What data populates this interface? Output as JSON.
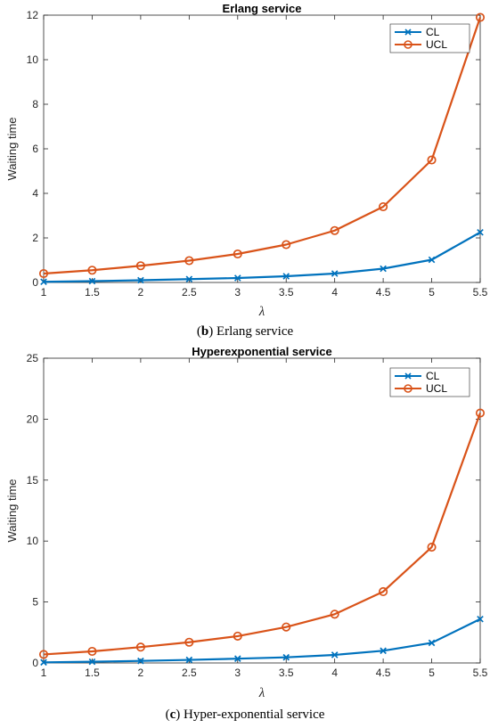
{
  "chart_data": [
    {
      "type": "line",
      "title": "Erlang service",
      "xlabel": "λ",
      "ylabel": "Waiting time",
      "xlim": [
        1,
        5.5
      ],
      "ylim": [
        0,
        12
      ],
      "xticks": [
        "1",
        "1.5",
        "2",
        "2.5",
        "3",
        "3.5",
        "4",
        "4.5",
        "5",
        "5.5"
      ],
      "yticks": [
        "0",
        "2",
        "4",
        "6",
        "8",
        "10",
        "12"
      ],
      "legend_position": "top-right",
      "x": [
        1,
        1.5,
        2,
        2.5,
        3,
        3.5,
        4,
        4.5,
        5,
        5.5
      ],
      "series": [
        {
          "name": "CL",
          "color": "#0072BD",
          "marker": "x",
          "values": [
            0.03,
            0.06,
            0.1,
            0.15,
            0.2,
            0.28,
            0.4,
            0.62,
            1.02,
            2.25
          ]
        },
        {
          "name": "UCL",
          "color": "#D95319",
          "marker": "o",
          "values": [
            0.4,
            0.55,
            0.75,
            0.98,
            1.28,
            1.7,
            2.33,
            3.4,
            5.5,
            11.9
          ]
        }
      ],
      "caption": {
        "label": "b",
        "text": " Erlang service",
        "open": "(",
        "close": ")"
      }
    },
    {
      "type": "line",
      "title": "Hyperexponential service",
      "xlabel": "λ",
      "ylabel": "Waiting time",
      "xlim": [
        1,
        5.5
      ],
      "ylim": [
        0,
        25
      ],
      "xticks": [
        "1",
        "1.5",
        "2",
        "2.5",
        "3",
        "3.5",
        "4",
        "4.5",
        "5",
        "5.5"
      ],
      "yticks": [
        "0",
        "5",
        "10",
        "15",
        "20",
        "25"
      ],
      "legend_position": "top-right",
      "x": [
        1,
        1.5,
        2,
        2.5,
        3,
        3.5,
        4,
        4.5,
        5,
        5.5
      ],
      "series": [
        {
          "name": "CL",
          "color": "#0072BD",
          "marker": "x",
          "values": [
            0.05,
            0.1,
            0.17,
            0.25,
            0.35,
            0.46,
            0.66,
            1.0,
            1.65,
            3.6
          ]
        },
        {
          "name": "UCL",
          "color": "#D95319",
          "marker": "o",
          "values": [
            0.7,
            0.95,
            1.3,
            1.7,
            2.2,
            2.95,
            4.0,
            5.85,
            9.5,
            20.5
          ]
        }
      ],
      "caption": {
        "label": "c",
        "text": " Hyper-exponential service",
        "open": "(",
        "close": ")"
      }
    }
  ]
}
